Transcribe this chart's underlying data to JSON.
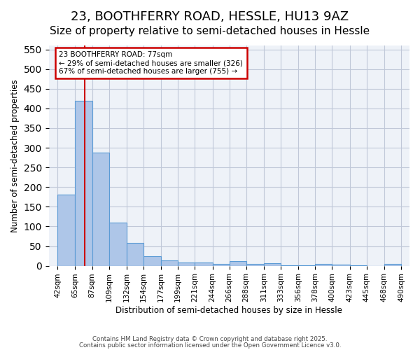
{
  "title1": "23, BOOTHFERRY ROAD, HESSLE, HU13 9AZ",
  "title2": "Size of property relative to semi-detached houses in Hessle",
  "xlabel": "Distribution of semi-detached houses by size in Hessle",
  "ylabel": "Number of semi-detached properties",
  "bin_labels": [
    "42sqm",
    "65sqm",
    "87sqm",
    "109sqm",
    "132sqm",
    "154sqm",
    "177sqm",
    "199sqm",
    "221sqm",
    "244sqm",
    "266sqm",
    "288sqm",
    "311sqm",
    "333sqm",
    "356sqm",
    "378sqm",
    "400sqm",
    "423sqm",
    "445sqm",
    "468sqm",
    "490sqm"
  ],
  "bar_values": [
    180,
    420,
    287,
    109,
    58,
    24,
    13,
    8,
    8,
    5,
    12,
    4,
    6,
    1,
    1,
    4,
    3,
    1,
    0,
    5
  ],
  "bar_color": "#aec6e8",
  "bar_edge_color": "#5b9bd5",
  "grid_color": "#c0c8d8",
  "bg_color": "#eef2f8",
  "red_line_x": 77,
  "annotation_title": "23 BOOTHFERRY ROAD: 77sqm",
  "annotation_line1": "← 29% of semi-detached houses are smaller (326)",
  "annotation_line2": "67% of semi-detached houses are larger (755) →",
  "annotation_box_color": "#cc0000",
  "ylim": [
    0,
    560
  ],
  "yticks": [
    0,
    50,
    100,
    150,
    200,
    250,
    300,
    350,
    400,
    450,
    500,
    550
  ],
  "footer1": "Contains HM Land Registry data © Crown copyright and database right 2025.",
  "footer2": "Contains public sector information licensed under the Open Government Licence v3.0.",
  "title1_fontsize": 13,
  "title2_fontsize": 11,
  "num_bins": 20
}
